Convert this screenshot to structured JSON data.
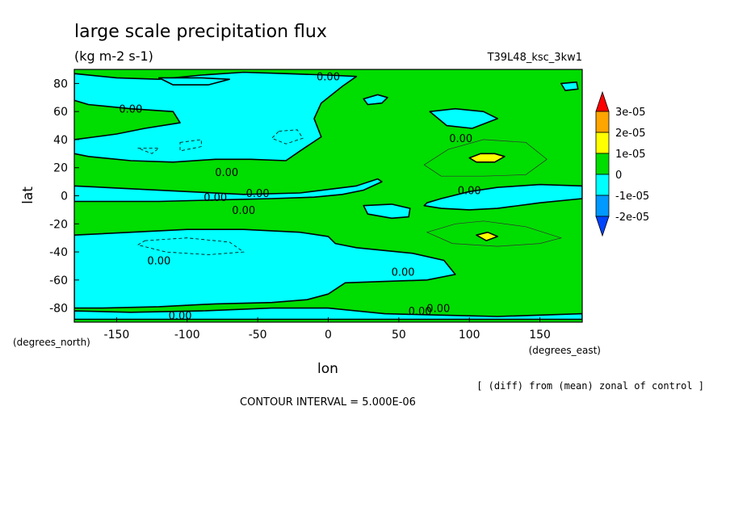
{
  "chart_data": {
    "type": "heatmap",
    "title": "large scale precipitation flux",
    "subtitle": "(kg m-2 s-1)",
    "run_label": "T39L48_ksc_3kw1",
    "xlabel": "lon",
    "ylabel": "lat",
    "x_unit_label": "(degrees_east)",
    "y_unit_label": "(degrees_north)",
    "xlim": [
      -180,
      180
    ],
    "ylim": [
      -90,
      90
    ],
    "x_ticks": [
      -150,
      -100,
      -50,
      0,
      50,
      100,
      150
    ],
    "y_ticks": [
      80,
      60,
      40,
      20,
      0,
      -20,
      -40,
      -60,
      -80
    ],
    "contour_label": "0.00",
    "contour_interval_text": "CONTOUR INTERVAL = 5.000E-06",
    "note": "[ (diff) from (mean) zonal of control ]",
    "legend": {
      "placement": "right",
      "labels": [
        "3e-05",
        "2e-05",
        "1e-05",
        "0",
        "-1e-05",
        "-2e-05"
      ],
      "colors": [
        "#ff0000",
        "#ffa500",
        "#ffff00",
        "#00dd00",
        "#00ffff",
        "#0099ff",
        "#0044ff"
      ]
    },
    "regions": [
      {
        "level": "negative",
        "color": "#00ffff",
        "points": [
          [
            -180,
            87
          ],
          [
            -150,
            84
          ],
          [
            -120,
            83
          ],
          [
            -90,
            86
          ],
          [
            -60,
            88
          ],
          [
            -30,
            87
          ],
          [
            0,
            86
          ],
          [
            20,
            85
          ],
          [
            10,
            78
          ],
          [
            -5,
            66
          ],
          [
            -10,
            55
          ],
          [
            -5,
            42
          ],
          [
            -20,
            32
          ],
          [
            -30,
            25
          ],
          [
            -55,
            26
          ],
          [
            -80,
            26
          ],
          [
            -110,
            24
          ],
          [
            -140,
            25
          ],
          [
            -170,
            28
          ],
          [
            -180,
            30
          ],
          [
            -180,
            40
          ],
          [
            -165,
            42
          ],
          [
            -150,
            44
          ],
          [
            -130,
            48
          ],
          [
            -105,
            52
          ],
          [
            -110,
            60
          ],
          [
            -140,
            62
          ],
          [
            -170,
            65
          ],
          [
            -180,
            68
          ]
        ]
      },
      {
        "level": "negative",
        "color": "#00ffff",
        "points": [
          [
            -180,
            7
          ],
          [
            -140,
            5
          ],
          [
            -100,
            3
          ],
          [
            -60,
            1
          ],
          [
            -20,
            2
          ],
          [
            20,
            7
          ],
          [
            35,
            12
          ],
          [
            38,
            10
          ],
          [
            25,
            4
          ],
          [
            10,
            1
          ],
          [
            -10,
            -1
          ],
          [
            -40,
            -2
          ],
          [
            -80,
            -3
          ],
          [
            -120,
            -4
          ],
          [
            -160,
            -4
          ],
          [
            -180,
            -4
          ]
        ]
      },
      {
        "level": "negative",
        "color": "#00ffff",
        "points": [
          [
            -180,
            -28
          ],
          [
            -140,
            -26
          ],
          [
            -100,
            -24
          ],
          [
            -60,
            -24
          ],
          [
            -20,
            -26
          ],
          [
            0,
            -29
          ],
          [
            5,
            -34
          ],
          [
            20,
            -37
          ],
          [
            40,
            -39
          ],
          [
            60,
            -41
          ],
          [
            82,
            -46
          ],
          [
            90,
            -56
          ],
          [
            70,
            -60
          ],
          [
            40,
            -61
          ],
          [
            12,
            -62
          ],
          [
            0,
            -70
          ],
          [
            -15,
            -74
          ],
          [
            -40,
            -76
          ],
          [
            -80,
            -77
          ],
          [
            -120,
            -79
          ],
          [
            -160,
            -80
          ],
          [
            -180,
            -80
          ]
        ]
      },
      {
        "level": "negative",
        "color": "#00ffff",
        "points": [
          [
            -180,
            -88
          ],
          [
            -120,
            -88
          ],
          [
            -60,
            -88
          ],
          [
            0,
            -88
          ],
          [
            60,
            -88
          ],
          [
            120,
            -88
          ],
          [
            180,
            -88
          ],
          [
            180,
            -84
          ],
          [
            120,
            -86
          ],
          [
            80,
            -85
          ],
          [
            40,
            -84
          ],
          [
            0,
            -80
          ],
          [
            -40,
            -80
          ],
          [
            -90,
            -82
          ],
          [
            -140,
            -83
          ],
          [
            -180,
            -82
          ]
        ]
      },
      {
        "level": "negative",
        "color": "#00ffff",
        "points": [
          [
            70,
            -5
          ],
          [
            80,
            -2
          ],
          [
            100,
            3
          ],
          [
            120,
            6
          ],
          [
            150,
            8
          ],
          [
            180,
            7
          ],
          [
            180,
            -2
          ],
          [
            150,
            -5
          ],
          [
            120,
            -9
          ],
          [
            100,
            -10
          ],
          [
            80,
            -9
          ],
          [
            68,
            -7
          ]
        ]
      },
      {
        "level": "negative",
        "color": "#00ffff",
        "points": [
          [
            25,
            -7
          ],
          [
            45,
            -6
          ],
          [
            58,
            -9
          ],
          [
            57,
            -15
          ],
          [
            45,
            -16
          ],
          [
            28,
            -13
          ]
        ]
      },
      {
        "level": "negative",
        "color": "#00ffff",
        "points": [
          [
            -120,
            84
          ],
          [
            -90,
            84
          ],
          [
            -70,
            83
          ],
          [
            -85,
            79
          ],
          [
            -110,
            79
          ]
        ]
      },
      {
        "level": "negative",
        "color": "#00ffff",
        "points": [
          [
            25,
            69
          ],
          [
            35,
            72
          ],
          [
            42,
            70
          ],
          [
            38,
            66
          ],
          [
            28,
            65
          ]
        ]
      },
      {
        "level": "negative",
        "color": "#00ffff",
        "points": [
          [
            72,
            60
          ],
          [
            90,
            62
          ],
          [
            110,
            60
          ],
          [
            120,
            55
          ],
          [
            102,
            48
          ],
          [
            84,
            50
          ]
        ]
      },
      {
        "level": "negative",
        "color": "#00ffff",
        "points": [
          [
            165,
            80
          ],
          [
            176,
            81
          ],
          [
            177,
            76
          ],
          [
            168,
            75
          ]
        ]
      },
      {
        "level": "positive",
        "color": "#ffff00",
        "points": [
          [
            100,
            27
          ],
          [
            108,
            30
          ],
          [
            118,
            30
          ],
          [
            125,
            28
          ],
          [
            118,
            24
          ],
          [
            105,
            24
          ]
        ]
      },
      {
        "level": "positive",
        "color": "#ffff00",
        "points": [
          [
            105,
            -28
          ],
          [
            113,
            -26
          ],
          [
            120,
            -29
          ],
          [
            112,
            -32
          ]
        ]
      }
    ],
    "dashed_contours": [
      [
        [
          -35,
          46
        ],
        [
          -22,
          47
        ],
        [
          -18,
          41
        ],
        [
          -30,
          37
        ],
        [
          -40,
          41
        ]
      ],
      [
        [
          -105,
          38
        ],
        [
          -90,
          40
        ],
        [
          -90,
          35
        ],
        [
          -105,
          32
        ]
      ],
      [
        [
          -135,
          34
        ],
        [
          -120,
          34
        ],
        [
          -125,
          30
        ]
      ],
      [
        [
          -130,
          -32
        ],
        [
          -100,
          -30
        ],
        [
          -70,
          -33
        ],
        [
          -60,
          -40
        ],
        [
          -85,
          -42
        ],
        [
          -115,
          -40
        ],
        [
          -135,
          -35
        ]
      ]
    ],
    "thin_contours": [
      [
        [
          68,
          22
        ],
        [
          85,
          33
        ],
        [
          110,
          40
        ],
        [
          140,
          38
        ],
        [
          155,
          26
        ],
        [
          140,
          15
        ],
        [
          110,
          14
        ],
        [
          80,
          14
        ]
      ],
      [
        [
          70,
          -26
        ],
        [
          90,
          -20
        ],
        [
          110,
          -18
        ],
        [
          140,
          -22
        ],
        [
          165,
          -30
        ],
        [
          150,
          -34
        ],
        [
          120,
          -36
        ],
        [
          88,
          -34
        ]
      ]
    ],
    "contour_label_positions": [
      [
        0,
        85
      ],
      [
        -140,
        62
      ],
      [
        -72,
        17
      ],
      [
        -50,
        2
      ],
      [
        -80,
        -1
      ],
      [
        -60,
        -10
      ],
      [
        -120,
        -46
      ],
      [
        53,
        -54
      ],
      [
        94,
        41
      ],
      [
        100,
        4
      ],
      [
        -105,
        -85
      ],
      [
        65,
        -82
      ],
      [
        78,
        -80
      ]
    ]
  }
}
